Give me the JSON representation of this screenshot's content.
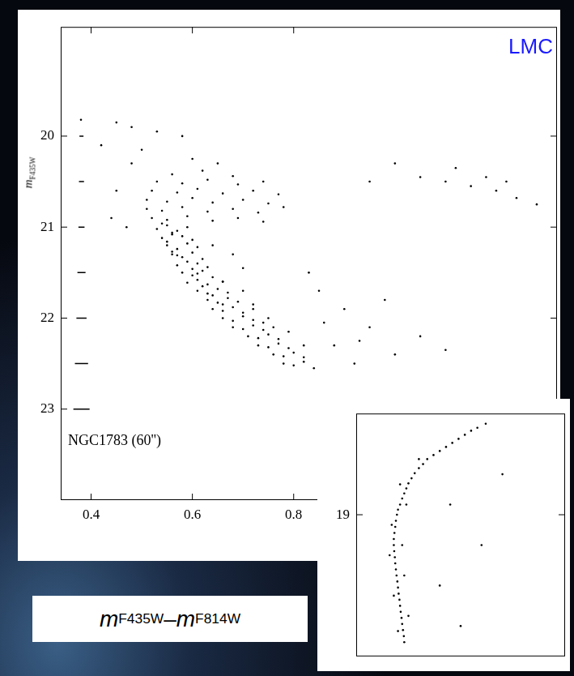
{
  "chart_data": [
    {
      "type": "scatter",
      "x_label": "mF435W–mF814W",
      "y_label": "mF435W",
      "annotations": [
        {
          "text": "LMC",
          "color": "#1a1aff"
        },
        {
          "text": "NGC1783 (60'')",
          "color": "#000000"
        }
      ],
      "color": "#000000",
      "grid": false,
      "xlim": [
        0.34,
        1.32
      ],
      "ylim": [
        24.0,
        18.8
      ],
      "xticks": [
        0.4,
        0.6,
        0.8
      ],
      "yticks": [
        20,
        21,
        22,
        23
      ],
      "error_bars": {
        "x": [
          0.381,
          0.381,
          0.381,
          0.381,
          0.381,
          0.381,
          0.381
        ],
        "y": [
          20,
          20.5,
          21,
          21.5,
          22,
          22.5,
          23
        ],
        "xerr": [
          0.004,
          0.005,
          0.006,
          0.008,
          0.01,
          0.013,
          0.016
        ]
      },
      "x": [
        0.53,
        0.55,
        0.57,
        0.59,
        0.56,
        0.54,
        0.54,
        0.56,
        0.58,
        0.6,
        0.55,
        0.55,
        0.57,
        0.59,
        0.61,
        0.56,
        0.56,
        0.58,
        0.6,
        0.62,
        0.57,
        0.57,
        0.59,
        0.61,
        0.63,
        0.6,
        0.58,
        0.6,
        0.62,
        0.64,
        0.61,
        0.59,
        0.61,
        0.63,
        0.66,
        0.62,
        0.61,
        0.63,
        0.65,
        0.67,
        0.64,
        0.63,
        0.65,
        0.67,
        0.69,
        0.66,
        0.64,
        0.66,
        0.68,
        0.7,
        0.72,
        0.66,
        0.68,
        0.7,
        0.72,
        0.74,
        0.68,
        0.7,
        0.72,
        0.74,
        0.76,
        0.71,
        0.73,
        0.75,
        0.77,
        0.73,
        0.75,
        0.77,
        0.79,
        0.76,
        0.78,
        0.8,
        0.82,
        0.78,
        0.8,
        0.82,
        0.84,
        0.66,
        0.7,
        0.72,
        0.75,
        0.79,
        0.82,
        0.7,
        0.68,
        0.64,
        0.56,
        0.62,
        0.68,
        0.53,
        0.58,
        0.63,
        0.69,
        0.74,
        0.52,
        0.57,
        0.61,
        0.66,
        0.72,
        0.77,
        0.51,
        0.55,
        0.6,
        0.64,
        0.7,
        0.75,
        0.51,
        0.54,
        0.58,
        0.63,
        0.68,
        0.73,
        0.78,
        0.52,
        0.55,
        0.59,
        0.64,
        0.69,
        0.74,
        0.45,
        0.48,
        0.53,
        0.58,
        0.42,
        0.5,
        0.6,
        0.65,
        0.38,
        0.85,
        0.9,
        0.95,
        0.88,
        1.0,
        0.92,
        1.05,
        0.83,
        0.98,
        1.1,
        0.86,
        0.93,
        1.05,
        1.1,
        1.15,
        1.2,
        1.24,
        1.28,
        1.12,
        1.0,
        1.18,
        1.22,
        0.95,
        0.45,
        0.47,
        0.48,
        0.44
      ],
      "values": [
        21.02,
        20.98,
        21.04,
        21.0,
        21.06,
        20.96,
        21.12,
        21.08,
        21.1,
        21.14,
        21.16,
        21.2,
        21.24,
        21.18,
        21.22,
        21.27,
        21.3,
        21.33,
        21.28,
        21.35,
        21.31,
        21.42,
        21.38,
        21.4,
        21.44,
        21.46,
        21.5,
        21.53,
        21.48,
        21.55,
        21.51,
        21.61,
        21.58,
        21.63,
        21.6,
        21.65,
        21.7,
        21.73,
        21.68,
        21.72,
        21.75,
        21.8,
        21.83,
        21.78,
        21.82,
        21.85,
        21.9,
        21.92,
        21.88,
        21.94,
        21.9,
        22.0,
        22.03,
        21.98,
        22.02,
        22.05,
        22.1,
        22.12,
        22.08,
        22.13,
        22.1,
        22.2,
        22.22,
        22.18,
        22.23,
        22.3,
        22.32,
        22.28,
        22.33,
        22.4,
        22.42,
        22.38,
        22.43,
        22.5,
        22.52,
        22.48,
        22.55,
        21.6,
        21.7,
        21.85,
        22.0,
        22.15,
        22.3,
        21.45,
        21.3,
        21.2,
        20.42,
        20.38,
        20.44,
        20.5,
        20.52,
        20.48,
        20.53,
        20.5,
        20.6,
        20.62,
        20.58,
        20.63,
        20.6,
        20.64,
        20.7,
        20.72,
        20.68,
        20.73,
        20.7,
        20.74,
        20.8,
        20.82,
        20.78,
        20.83,
        20.8,
        20.84,
        20.78,
        20.9,
        20.92,
        20.88,
        20.93,
        20.9,
        20.94,
        19.85,
        19.9,
        19.95,
        20.0,
        20.1,
        20.15,
        20.25,
        20.3,
        19.82,
        21.7,
        21.9,
        22.1,
        22.3,
        22.4,
        22.5,
        22.2,
        21.5,
        21.8,
        22.35,
        22.05,
        22.25,
        20.45,
        20.5,
        20.55,
        20.6,
        20.68,
        20.75,
        20.35,
        20.3,
        20.45,
        20.5,
        20.5,
        20.6,
        21.0,
        20.3,
        20.9
      ]
    },
    {
      "type": "scatter",
      "color": "#000000",
      "grid": false,
      "tick_labels": "y",
      "xlim": [
        0.3,
        1.3
      ],
      "ylim": [
        20.4,
        18.0
      ],
      "yticks": [
        19
      ],
      "x": [
        0.92,
        0.88,
        0.85,
        0.82,
        0.79,
        0.76,
        0.73,
        0.7,
        0.67,
        0.64,
        0.62,
        0.6,
        0.58,
        0.565,
        0.55,
        0.54,
        0.53,
        0.52,
        0.51,
        0.5,
        0.495,
        0.49,
        0.487,
        0.483,
        0.48,
        0.48,
        0.482,
        0.485,
        0.487,
        0.49,
        0.493,
        0.497,
        0.5,
        0.503,
        0.507,
        0.51,
        0.513,
        0.517,
        0.52,
        0.524,
        0.528,
        0.53,
        0.51,
        0.47,
        0.46,
        0.52,
        0.53,
        0.48,
        0.55,
        0.5,
        0.54,
        0.6,
        0.75,
        0.9,
        0.7,
        1.0,
        0.8
      ],
      "values": [
        18.1,
        18.14,
        18.17,
        18.21,
        18.25,
        18.29,
        18.33,
        18.37,
        18.41,
        18.45,
        18.5,
        18.54,
        18.59,
        18.64,
        18.69,
        18.74,
        18.79,
        18.84,
        18.9,
        18.95,
        19.0,
        19.06,
        19.12,
        19.18,
        19.24,
        19.3,
        19.36,
        19.42,
        19.48,
        19.54,
        19.6,
        19.66,
        19.72,
        19.78,
        19.84,
        19.9,
        19.96,
        20.02,
        20.08,
        20.14,
        20.2,
        20.26,
        18.7,
        19.1,
        19.4,
        19.3,
        19.6,
        19.8,
        20.0,
        20.15,
        18.9,
        18.45,
        18.9,
        19.3,
        19.7,
        18.6,
        20.1
      ]
    }
  ]
}
